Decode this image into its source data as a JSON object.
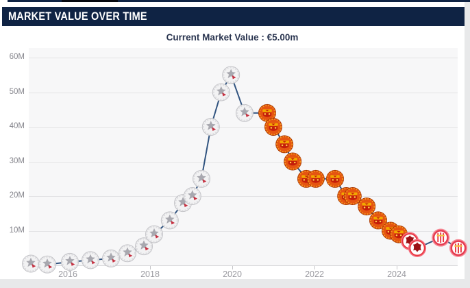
{
  "header": {
    "title": "MARKET VALUE OVER TIME"
  },
  "subheader": {
    "label": "Current Market Value : €5.00m"
  },
  "chart_data": {
    "type": "line",
    "title": "Market value over time",
    "current_value_label": "€5.00m",
    "unit": "€ million",
    "legend": false,
    "grid": true,
    "line_color": "#315480",
    "x_axis": {
      "tick_years": [
        2016,
        2018,
        2020,
        2022,
        2024
      ],
      "range": [
        2015.0,
        2025.45
      ]
    },
    "y_axis": {
      "tick_labels": [
        "60M",
        "50M",
        "40M",
        "30M",
        "20M",
        "10M"
      ],
      "tick_values": [
        60,
        50,
        40,
        30,
        20,
        10
      ],
      "range": [
        0,
        62
      ]
    },
    "clubs": [
      {
        "id": "ajax",
        "icon": "silver-white-crest-with-red-accent",
        "colors": [
          "#f2f2f3",
          "#a8a8af",
          "#c63040"
        ]
      },
      {
        "id": "man-united",
        "icon": "orange-red-crest-with-gold-details",
        "colors": [
          "#e55511",
          "#c41e0a",
          "#f2a900"
        ]
      },
      {
        "id": "eintracht",
        "icon": "white-crest-dark-red-eagle-red-ring",
        "colors": [
          "#ffffff",
          "#9b1115",
          "#e8323c"
        ]
      },
      {
        "id": "girona",
        "icon": "red-white-striped-crest",
        "colors": [
          "#e63c50",
          "#ffffff",
          "#f5c542"
        ]
      }
    ],
    "points": [
      {
        "x": 2015.1,
        "value": 0.5,
        "club": "ajax"
      },
      {
        "x": 2015.5,
        "value": 0.25,
        "club": "ajax"
      },
      {
        "x": 2016.05,
        "value": 1,
        "club": "ajax"
      },
      {
        "x": 2016.55,
        "value": 1.5,
        "club": "ajax"
      },
      {
        "x": 2017.05,
        "value": 2,
        "club": "ajax"
      },
      {
        "x": 2017.45,
        "value": 3.5,
        "club": "ajax"
      },
      {
        "x": 2017.85,
        "value": 5.5,
        "club": "ajax"
      },
      {
        "x": 2018.1,
        "value": 9,
        "club": "ajax"
      },
      {
        "x": 2018.48,
        "value": 13,
        "club": "ajax"
      },
      {
        "x": 2018.8,
        "value": 18,
        "club": "ajax"
      },
      {
        "x": 2019.03,
        "value": 20,
        "club": "ajax"
      },
      {
        "x": 2019.25,
        "value": 25,
        "club": "ajax"
      },
      {
        "x": 2019.48,
        "value": 40,
        "club": "ajax"
      },
      {
        "x": 2019.73,
        "value": 50,
        "club": "ajax"
      },
      {
        "x": 2019.97,
        "value": 55,
        "club": "ajax"
      },
      {
        "x": 2020.3,
        "value": 44,
        "club": "ajax"
      },
      {
        "x": 2020.85,
        "value": 44,
        "club": "man-united"
      },
      {
        "x": 2021.0,
        "value": 40,
        "club": "man-united"
      },
      {
        "x": 2021.27,
        "value": 35,
        "club": "man-united"
      },
      {
        "x": 2021.47,
        "value": 30,
        "club": "man-united"
      },
      {
        "x": 2021.8,
        "value": 25,
        "club": "man-united"
      },
      {
        "x": 2022.03,
        "value": 25,
        "club": "man-united"
      },
      {
        "x": 2022.5,
        "value": 25,
        "club": "man-united"
      },
      {
        "x": 2022.77,
        "value": 20,
        "club": "man-united"
      },
      {
        "x": 2022.93,
        "value": 20,
        "club": "man-united"
      },
      {
        "x": 2023.27,
        "value": 17,
        "club": "man-united"
      },
      {
        "x": 2023.55,
        "value": 13,
        "club": "man-united"
      },
      {
        "x": 2023.85,
        "value": 10,
        "club": "man-united"
      },
      {
        "x": 2024.05,
        "value": 9,
        "club": "man-united"
      },
      {
        "x": 2024.32,
        "value": 7,
        "club": "eintracht"
      },
      {
        "x": 2024.5,
        "value": 5,
        "club": "eintracht"
      },
      {
        "x": 2025.07,
        "value": 8,
        "club": "girona"
      },
      {
        "x": 2025.5,
        "value": 5,
        "club": "girona"
      }
    ]
  }
}
